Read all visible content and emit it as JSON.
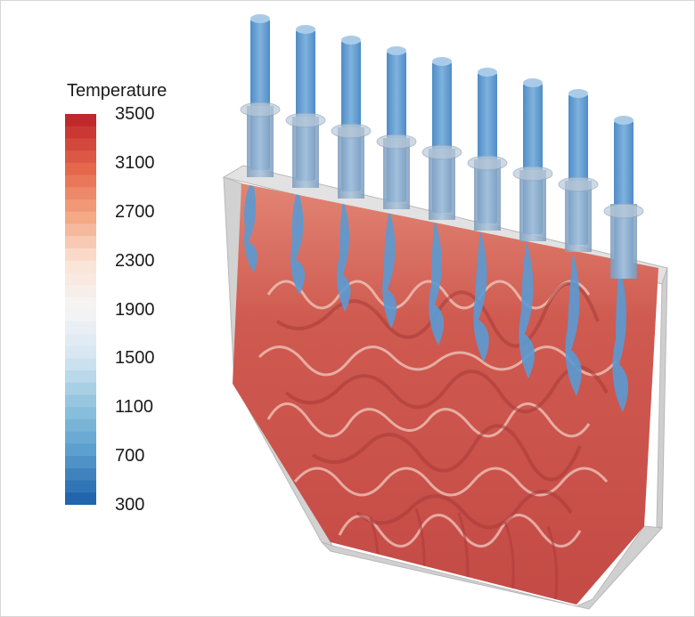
{
  "legend": {
    "title": "Temperature",
    "ticks": [
      "3500",
      "3100",
      "2700",
      "2300",
      "1900",
      "1500",
      "1100",
      "700",
      "300"
    ],
    "colors": [
      "#c0282c",
      "#e5664b",
      "#f4a582",
      "#fbe3d6",
      "#f5f5f5",
      "#d6e6f2",
      "#92c5de",
      "#5b9fcf",
      "#2166ac"
    ]
  },
  "scene": {
    "object": "combustion-chamber",
    "injector_count": 9,
    "injector_color": "#6a9fd0",
    "hot_color": "#c9504b",
    "cold_color": "#5a9bd3",
    "casing_color": "#c8c8c8"
  }
}
